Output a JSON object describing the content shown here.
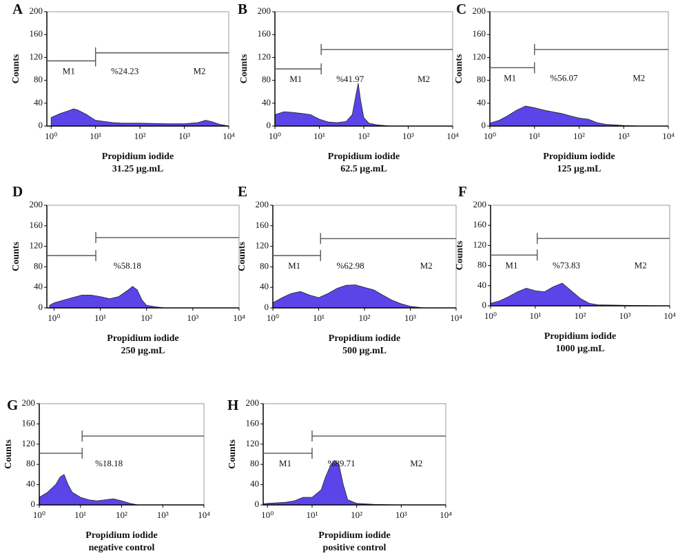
{
  "chart_data": [
    {
      "type": "area",
      "panel": "A",
      "ylabel": "Counts",
      "xlabel": "Propidium iodide",
      "subtitle": "31.25 μg.mL",
      "xscale": "log",
      "color": "#5b45e8",
      "x": [
        1,
        1.6,
        2.5,
        3.2,
        4,
        6.3,
        10,
        16,
        25,
        40,
        100,
        400,
        1000,
        2000,
        3000,
        4000,
        6300,
        10000
      ],
      "values": [
        15,
        22,
        27,
        30,
        28,
        20,
        10,
        8,
        6,
        5,
        5,
        4,
        4,
        6,
        10,
        8,
        3,
        0
      ],
      "xlim": [
        0.8,
        10000
      ],
      "ylim": [
        0,
        200
      ],
      "yticks": [
        0,
        40,
        80,
        120,
        160,
        200
      ],
      "xticks": [
        {
          "value": 1,
          "label": "10⁰"
        },
        {
          "value": 10,
          "label": "10¹"
        },
        {
          "value": 100,
          "label": "10²"
        },
        {
          "value": 1000,
          "label": "10³"
        },
        {
          "value": 10000,
          "label": "10⁴"
        }
      ],
      "gates": [
        {
          "label": "M1",
          "range": [
            0.8,
            10
          ],
          "y": 114
        },
        {
          "label": "M2",
          "range": [
            10,
            10000
          ],
          "y": 128
        }
      ],
      "annotation": "%24.23"
    },
    {
      "type": "area",
      "panel": "B",
      "ylabel": "Counts",
      "xlabel": "Propidium iodide",
      "subtitle": "62.5 μg.mL",
      "xscale": "log",
      "color": "#5b45e8",
      "x": [
        1,
        1.6,
        2.5,
        4,
        6.3,
        10,
        16,
        25,
        40,
        55,
        65,
        75,
        85,
        100,
        130,
        200,
        400,
        10000
      ],
      "values": [
        20,
        25,
        24,
        22,
        20,
        12,
        7,
        6,
        8,
        20,
        50,
        75,
        45,
        15,
        5,
        2,
        0,
        0
      ],
      "xlim": [
        1,
        10000
      ],
      "ylim": [
        0,
        200
      ],
      "yticks": [
        0,
        40,
        80,
        120,
        160,
        200
      ],
      "xticks": [
        {
          "value": 1,
          "label": "10⁰"
        },
        {
          "value": 10,
          "label": "10¹"
        },
        {
          "value": 100,
          "label": "10²"
        },
        {
          "value": 1000,
          "label": "10³"
        },
        {
          "value": 10000,
          "label": "10⁴"
        }
      ],
      "gates": [
        {
          "label": "M1",
          "range": [
            1,
            11
          ],
          "y": 100
        },
        {
          "label": "M2",
          "range": [
            11,
            10000
          ],
          "y": 134
        }
      ],
      "annotation": "%41.97"
    },
    {
      "type": "area",
      "panel": "C",
      "ylabel": "Counts",
      "xlabel": "Propidium iodide",
      "subtitle": "125 μg.mL",
      "xscale": "log",
      "color": "#5b45e8",
      "x": [
        1,
        1.6,
        2.5,
        4,
        6.3,
        10,
        16,
        25,
        40,
        63,
        100,
        160,
        250,
        400,
        630,
        1000,
        2500,
        10000
      ],
      "values": [
        5,
        10,
        18,
        28,
        35,
        32,
        28,
        25,
        22,
        18,
        14,
        12,
        6,
        3,
        2,
        1,
        0,
        0
      ],
      "xlim": [
        1,
        10000
      ],
      "ylim": [
        0,
        200
      ],
      "yticks": [
        0,
        40,
        80,
        120,
        160,
        200
      ],
      "xticks": [
        {
          "value": 1,
          "label": "10⁰"
        },
        {
          "value": 10,
          "label": "10¹"
        },
        {
          "value": 100,
          "label": "10²"
        },
        {
          "value": 1000,
          "label": "10³"
        },
        {
          "value": 10000,
          "label": "10⁴"
        }
      ],
      "gates": [
        {
          "label": "M1",
          "range": [
            1,
            10
          ],
          "y": 102
        },
        {
          "label": "M2",
          "range": [
            10,
            10000
          ],
          "y": 134
        }
      ],
      "annotation": "%56.07"
    },
    {
      "type": "area",
      "panel": "D",
      "ylabel": "Counts",
      "xlabel": "Propidium iodide",
      "subtitle": "250 μg.mL",
      "xscale": "log",
      "color": "#5b45e8",
      "x": [
        0.8,
        1,
        1.6,
        2.5,
        4,
        6.3,
        10,
        16,
        25,
        40,
        50,
        63,
        80,
        100,
        160,
        250,
        1000,
        10000
      ],
      "values": [
        5,
        10,
        15,
        20,
        25,
        25,
        22,
        18,
        22,
        35,
        42,
        35,
        15,
        5,
        2,
        0,
        0,
        0
      ],
      "xlim": [
        0.7,
        10000
      ],
      "ylim": [
        0,
        200
      ],
      "yticks": [
        0,
        40,
        80,
        120,
        160,
        200
      ],
      "xticks": [
        {
          "value": 1,
          "label": "10⁰"
        },
        {
          "value": 10,
          "label": "10¹"
        },
        {
          "value": 100,
          "label": "10²"
        },
        {
          "value": 1000,
          "label": "10³"
        },
        {
          "value": 10000,
          "label": "10⁴"
        }
      ],
      "gates": [
        {
          "range": [
            0.7,
            8
          ],
          "y": 102
        },
        {
          "range": [
            8,
            10000
          ],
          "y": 137
        }
      ],
      "annotation": "%58.18"
    },
    {
      "type": "area",
      "panel": "E",
      "ylabel": "Counts",
      "xlabel": "Propidium iodide",
      "subtitle": "500 μg.mL",
      "xscale": "log",
      "color": "#5b45e8",
      "x": [
        1,
        1.6,
        2.5,
        4,
        6.3,
        10,
        16,
        25,
        40,
        63,
        100,
        160,
        250,
        400,
        630,
        1000,
        2000,
        10000
      ],
      "values": [
        10,
        20,
        28,
        32,
        25,
        20,
        28,
        38,
        44,
        45,
        40,
        35,
        25,
        15,
        8,
        3,
        0,
        0
      ],
      "xlim": [
        1,
        10000
      ],
      "ylim": [
        0,
        200
      ],
      "yticks": [
        0,
        40,
        80,
        120,
        160,
        200
      ],
      "xticks": [
        {
          "value": 1,
          "label": "10⁰"
        },
        {
          "value": 10,
          "label": "10¹"
        },
        {
          "value": 100,
          "label": "10²"
        },
        {
          "value": 1000,
          "label": "10³"
        },
        {
          "value": 10000,
          "label": "10⁴"
        }
      ],
      "gates": [
        {
          "label": "M1",
          "range": [
            1,
            11
          ],
          "y": 102
        },
        {
          "label": "M2",
          "range": [
            11,
            10000
          ],
          "y": 135
        }
      ],
      "annotation": "%62.98"
    },
    {
      "type": "area",
      "panel": "F",
      "ylabel": "Counts",
      "xlabel": "Propidium iodide",
      "subtitle": "1000 μg.mL",
      "xscale": "log",
      "color": "#5b45e8",
      "x": [
        1,
        1.6,
        2.5,
        4,
        6.3,
        10,
        16,
        25,
        40,
        63,
        100,
        160,
        250,
        1000,
        10000
      ],
      "values": [
        5,
        10,
        18,
        28,
        35,
        30,
        28,
        38,
        45,
        30,
        15,
        5,
        2,
        1,
        0
      ],
      "xlim": [
        1,
        10000
      ],
      "ylim": [
        0,
        200
      ],
      "yticks": [
        0,
        40,
        80,
        120,
        160,
        200
      ],
      "xticks": [
        {
          "value": 1,
          "label": "10⁰"
        },
        {
          "value": 10,
          "label": "10¹"
        },
        {
          "value": 100,
          "label": "10²"
        },
        {
          "value": 1000,
          "label": "10³"
        },
        {
          "value": 10000,
          "label": "10⁴"
        }
      ],
      "gates": [
        {
          "label": "M1",
          "range": [
            1,
            11
          ],
          "y": 101
        },
        {
          "label": "M2",
          "range": [
            11,
            10000
          ],
          "y": 134
        }
      ],
      "annotation": "%73.83"
    },
    {
      "type": "area",
      "panel": "G",
      "ylabel": "Counts",
      "xlabel": "Propidium iodide",
      "subtitle": "negative control",
      "xscale": "log",
      "color": "#5b45e8",
      "x": [
        1,
        1.6,
        2.5,
        3.2,
        4,
        5,
        6.3,
        10,
        16,
        25,
        40,
        63,
        100,
        160,
        250,
        1000,
        10000
      ],
      "values": [
        15,
        25,
        40,
        55,
        60,
        40,
        25,
        15,
        10,
        8,
        10,
        12,
        8,
        3,
        0,
        0,
        0
      ],
      "xlim": [
        1,
        10000
      ],
      "ylim": [
        0,
        200
      ],
      "yticks": [
        0,
        40,
        80,
        120,
        160,
        200
      ],
      "xticks": [
        {
          "value": 1,
          "label": "10⁰"
        },
        {
          "value": 10,
          "label": "10¹"
        },
        {
          "value": 100,
          "label": "10²"
        },
        {
          "value": 1000,
          "label": "10³"
        },
        {
          "value": 10000,
          "label": "10⁴"
        }
      ],
      "gates": [
        {
          "range": [
            1,
            11
          ],
          "y": 102
        },
        {
          "range": [
            11,
            10000
          ],
          "y": 136
        }
      ],
      "annotation": "%18.18"
    },
    {
      "type": "area",
      "panel": "H",
      "ylabel": "Counts",
      "xlabel": "Propidium iodide",
      "subtitle": "positive control",
      "xscale": "log",
      "color": "#5b45e8",
      "x": [
        0.8,
        1,
        2.5,
        4,
        6.3,
        10,
        16,
        20,
        25,
        32,
        40,
        50,
        63,
        100,
        250,
        1000,
        10000
      ],
      "values": [
        2,
        3,
        5,
        8,
        15,
        15,
        30,
        55,
        75,
        88,
        80,
        40,
        10,
        3,
        1,
        0,
        0
      ],
      "xlim": [
        0.8,
        10000
      ],
      "ylim": [
        0,
        200
      ],
      "yticks": [
        0,
        40,
        80,
        120,
        160,
        200
      ],
      "xticks": [
        {
          "value": 1,
          "label": "10⁰"
        },
        {
          "value": 10,
          "label": "10¹"
        },
        {
          "value": 100,
          "label": "10²"
        },
        {
          "value": 1000,
          "label": "10³"
        },
        {
          "value": 10000,
          "label": "10⁴"
        }
      ],
      "gates": [
        {
          "label": "M1",
          "range": [
            0.8,
            10
          ],
          "y": 102
        },
        {
          "label": "M2",
          "range": [
            10,
            10000
          ],
          "y": 136
        }
      ],
      "annotation": "%89.71"
    }
  ]
}
